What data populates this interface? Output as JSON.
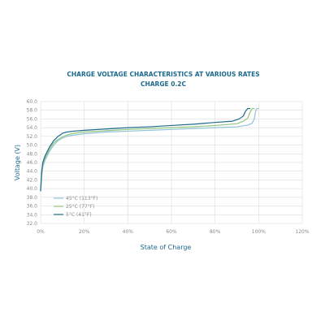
{
  "chart_data": {
    "type": "line",
    "title": "CHARGE VOLTAGE CHARACTERISTICS AT VARIOUS RATES",
    "subtitle": "CHARGE 0.2C",
    "xlabel": "State of Charge",
    "ylabel": "Voltage (V)",
    "xlim": [
      0,
      120
    ],
    "ylim": [
      32,
      60
    ],
    "x_ticks": [
      "0%",
      "20%",
      "40%",
      "60%",
      "80%",
      "100%",
      "120%"
    ],
    "y_ticks": [
      "32.0",
      "34.0",
      "36.0",
      "38.0",
      "40.0",
      "42.0",
      "44.0",
      "46.0",
      "48.0",
      "50.0",
      "52.0",
      "54.0",
      "56.0",
      "58.0",
      "60.0"
    ],
    "grid": true,
    "legend_position": "bottom-left",
    "series": [
      {
        "name": "45°C (113°F)",
        "color": "#8fc3d9",
        "x": [
          0,
          0.5,
          1,
          2,
          4,
          6,
          8,
          10,
          12,
          15,
          20,
          30,
          40,
          50,
          60,
          70,
          80,
          90,
          95,
          97,
          98,
          98.5,
          99,
          99.5,
          100
        ],
        "y": [
          39.5,
          43,
          45,
          46.5,
          48.5,
          50,
          51,
          51.6,
          52,
          52.3,
          52.6,
          53,
          53.2,
          53.4,
          53.6,
          53.8,
          54,
          54.2,
          54.6,
          55,
          56,
          57.5,
          58.3,
          58.4,
          58.4
        ]
      },
      {
        "name": "25°C (77°F)",
        "color": "#93c47d",
        "x": [
          0,
          0.5,
          1,
          2,
          4,
          6,
          8,
          10,
          12,
          15,
          20,
          30,
          40,
          50,
          60,
          70,
          80,
          90,
          93,
          95,
          96,
          97,
          98
        ],
        "y": [
          39.5,
          43.5,
          45.5,
          47,
          49,
          50.5,
          51.3,
          51.9,
          52.3,
          52.7,
          53,
          53.3,
          53.6,
          53.8,
          54,
          54.2,
          54.5,
          54.9,
          55.5,
          56.2,
          57.5,
          58.4,
          58.4
        ]
      },
      {
        "name": "5°C (41°F)",
        "color": "#1e6a8c",
        "x": [
          0,
          0.5,
          1,
          2,
          4,
          6,
          8,
          10,
          12,
          15,
          20,
          30,
          40,
          50,
          60,
          70,
          80,
          88,
          91,
          93,
          94,
          95,
          96
        ],
        "y": [
          39.5,
          44,
          46,
          47.5,
          49.5,
          51,
          52,
          52.7,
          53,
          53.2,
          53.4,
          53.7,
          54,
          54.2,
          54.5,
          54.8,
          55.2,
          55.5,
          56,
          56.7,
          57.8,
          58.4,
          58.4
        ]
      }
    ]
  }
}
